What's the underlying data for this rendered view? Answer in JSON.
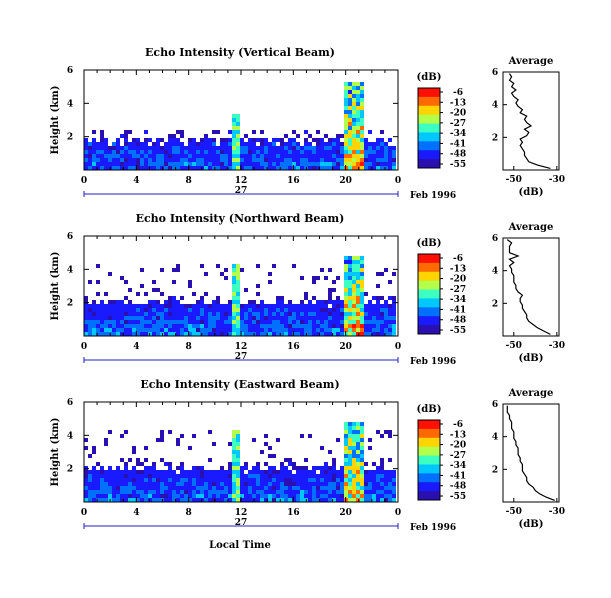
{
  "chart_data": {
    "type": "heatmap",
    "x_ticks": [
      "0",
      "4",
      "8",
      "12",
      "16",
      "20",
      "0"
    ],
    "y_ticks": [
      "6",
      "4",
      "2"
    ],
    "date_labels": [
      "27",
      "Feb 1996"
    ],
    "ylabel": "Height (km)",
    "colorbar": {
      "unit": "(dB)",
      "ticks": [
        "-6",
        "-13",
        "-20",
        "-27",
        "-34",
        "-41",
        "-48",
        "-55"
      ],
      "colors": [
        "#ff1000",
        "#ff6a00",
        "#ffd400",
        "#b4ff4a",
        "#3cffc2",
        "#00c8ff",
        "#0070ff",
        "#1a1aff",
        "#2a10b0"
      ]
    },
    "profile": {
      "title": "Average",
      "xlabel": "(dB)",
      "x_ticks": [
        "-50",
        "-30"
      ],
      "xlim": [
        -55,
        -29
      ],
      "y_ticks": [
        "6",
        "4",
        "2"
      ],
      "ylim": [
        0,
        6
      ]
    },
    "panels": [
      {
        "title": "Echo Intensity (Vertical Beam)",
        "profile_km": [
          0.1,
          0.3,
          0.5,
          0.7,
          0.9,
          1.1,
          1.3,
          1.5,
          1.7,
          1.9,
          2.1,
          2.3,
          2.5,
          2.7,
          2.9,
          3.1,
          3.3,
          3.5,
          3.7,
          3.9,
          4.1,
          4.3,
          4.5,
          4.7,
          4.9,
          5.1,
          5.3,
          5.5,
          5.7,
          5.9
        ],
        "profile_db": [
          -33,
          -39,
          -43,
          -44,
          -45,
          -45,
          -46,
          -47,
          -46,
          -47,
          -44,
          -43,
          -45,
          -42,
          -44,
          -45,
          -44,
          -47,
          -46,
          -48,
          -49,
          -48,
          -50,
          -51,
          -49,
          -51,
          -50,
          -52,
          -51,
          -52
        ]
      },
      {
        "title": "Echo Intensity (Northward Beam)",
        "profile_km": [
          0.1,
          0.3,
          0.5,
          0.7,
          0.9,
          1.1,
          1.3,
          1.5,
          1.7,
          1.9,
          2.1,
          2.3,
          2.5,
          2.7,
          2.9,
          3.1,
          3.3,
          3.5,
          3.7,
          3.9,
          4.1,
          4.3,
          4.5,
          4.7,
          4.9,
          5.1,
          5.3,
          5.5,
          5.7,
          5.9
        ],
        "profile_db": [
          -33,
          -36,
          -39,
          -41,
          -43,
          -44,
          -44,
          -45,
          -46,
          -46,
          -47,
          -47,
          -46,
          -48,
          -49,
          -49,
          -50,
          -50,
          -50,
          -51,
          -51,
          -52,
          -50,
          -52,
          -48,
          -52,
          -52,
          -52,
          -51,
          -53
        ]
      },
      {
        "title": "Echo Intensity (Eastward Beam)",
        "profile_km": [
          0.1,
          0.3,
          0.5,
          0.7,
          0.9,
          1.1,
          1.3,
          1.5,
          1.7,
          1.9,
          2.1,
          2.3,
          2.5,
          2.7,
          2.9,
          3.1,
          3.3,
          3.5,
          3.7,
          3.9,
          4.1,
          4.3,
          4.5,
          4.7,
          4.9,
          5.1,
          5.3,
          5.5,
          5.7,
          5.9
        ],
        "profile_db": [
          -31,
          -35,
          -38,
          -40,
          -41,
          -43,
          -44,
          -44,
          -45,
          -46,
          -46,
          -46,
          -47,
          -47,
          -48,
          -48,
          -48,
          -49,
          -49,
          -50,
          -50,
          -50,
          -51,
          -51,
          -51,
          -52,
          -52,
          -53,
          -53,
          -53
        ]
      }
    ],
    "footer_label": "Local Time"
  }
}
